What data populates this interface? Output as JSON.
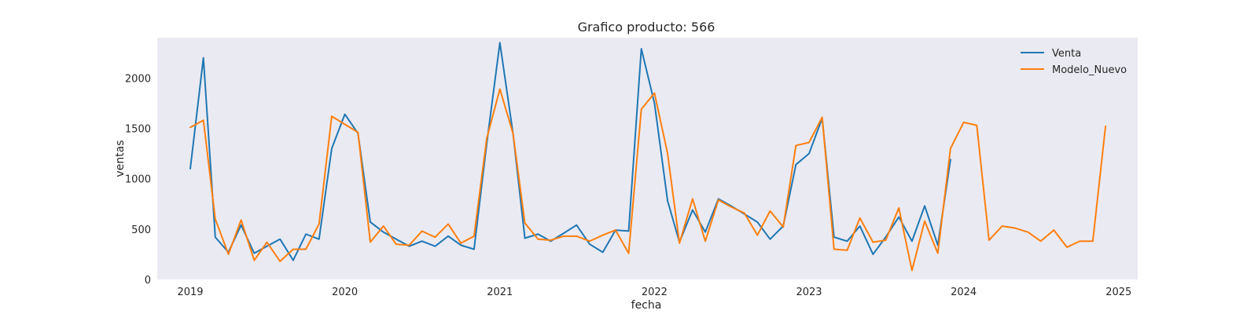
{
  "chart_data": {
    "type": "line",
    "title": "Grafico producto: 566",
    "xlabel": "fecha",
    "ylabel": "ventas",
    "ylim": [
      0,
      2400
    ],
    "xlim": [
      "2018-10-15",
      "2025-02-15"
    ],
    "x_ticks": [
      "2019",
      "2020",
      "2021",
      "2022",
      "2023",
      "2024",
      "2025"
    ],
    "y_ticks": [
      0,
      500,
      1000,
      1500,
      2000
    ],
    "grid": false,
    "legend_position": "top-right",
    "background_color": "#eaeaf2",
    "series": [
      {
        "name": "Venta",
        "color": "#1f77b4",
        "x": [
          "2019-01",
          "2019-02",
          "2019-03",
          "2019-04",
          "2019-05",
          "2019-06",
          "2019-07",
          "2019-08",
          "2019-09",
          "2019-10",
          "2019-11",
          "2019-12",
          "2020-01",
          "2020-02",
          "2020-03",
          "2020-04",
          "2020-05",
          "2020-06",
          "2020-07",
          "2020-08",
          "2020-09",
          "2020-10",
          "2020-11",
          "2020-12",
          "2021-01",
          "2021-02",
          "2021-03",
          "2021-04",
          "2021-05",
          "2021-06",
          "2021-07",
          "2021-08",
          "2021-09",
          "2021-10",
          "2021-11",
          "2021-12",
          "2022-01",
          "2022-02",
          "2022-03",
          "2022-04",
          "2022-05",
          "2022-06",
          "2022-07",
          "2022-08",
          "2022-09",
          "2022-10",
          "2022-11",
          "2022-12",
          "2023-01",
          "2023-02",
          "2023-03",
          "2023-04",
          "2023-05",
          "2023-06",
          "2023-07",
          "2023-08",
          "2023-09",
          "2023-10",
          "2023-11",
          "2023-12"
        ],
        "values": [
          1100,
          2200,
          420,
          270,
          540,
          260,
          330,
          400,
          190,
          450,
          400,
          1300,
          1640,
          1450,
          570,
          470,
          400,
          330,
          380,
          330,
          430,
          340,
          300,
          1350,
          2350,
          1450,
          410,
          450,
          380,
          460,
          540,
          350,
          270,
          490,
          480,
          2290,
          1750,
          780,
          370,
          690,
          470,
          800,
          730,
          650,
          570,
          400,
          530,
          1140,
          1250,
          1600,
          420,
          380,
          530,
          250,
          420,
          620,
          380,
          730,
          340,
          1190
        ]
      },
      {
        "name": "Modelo_Nuevo",
        "color": "#ff7f0e",
        "x": [
          "2019-01",
          "2019-02",
          "2019-03",
          "2019-04",
          "2019-05",
          "2019-06",
          "2019-07",
          "2019-08",
          "2019-09",
          "2019-10",
          "2019-11",
          "2019-12",
          "2020-01",
          "2020-02",
          "2020-03",
          "2020-04",
          "2020-05",
          "2020-06",
          "2020-07",
          "2020-08",
          "2020-09",
          "2020-10",
          "2020-11",
          "2020-12",
          "2021-01",
          "2021-02",
          "2021-03",
          "2021-04",
          "2021-05",
          "2021-06",
          "2021-07",
          "2021-08",
          "2021-09",
          "2021-10",
          "2021-11",
          "2021-12",
          "2022-01",
          "2022-02",
          "2022-03",
          "2022-04",
          "2022-05",
          "2022-06",
          "2022-07",
          "2022-08",
          "2022-09",
          "2022-10",
          "2022-11",
          "2022-12",
          "2023-01",
          "2023-02",
          "2023-03",
          "2023-04",
          "2023-05",
          "2023-06",
          "2023-07",
          "2023-08",
          "2023-09",
          "2023-10",
          "2023-11",
          "2023-12",
          "2024-01",
          "2024-02",
          "2024-03",
          "2024-04",
          "2024-05",
          "2024-06",
          "2024-07",
          "2024-08",
          "2024-09",
          "2024-10",
          "2024-11",
          "2024-12"
        ],
        "values": [
          1510,
          1580,
          600,
          250,
          590,
          190,
          370,
          180,
          300,
          300,
          550,
          1620,
          1540,
          1460,
          370,
          530,
          350,
          340,
          480,
          420,
          550,
          360,
          430,
          1400,
          1890,
          1450,
          560,
          400,
          390,
          430,
          430,
          380,
          440,
          490,
          260,
          1690,
          1850,
          1250,
          360,
          800,
          380,
          790,
          720,
          660,
          440,
          680,
          520,
          1330,
          1360,
          1610,
          300,
          290,
          610,
          370,
          390,
          710,
          90,
          580,
          260,
          1300,
          1560,
          1530,
          390,
          530,
          510,
          470,
          380,
          490,
          320,
          380,
          380,
          1520
        ]
      }
    ]
  }
}
